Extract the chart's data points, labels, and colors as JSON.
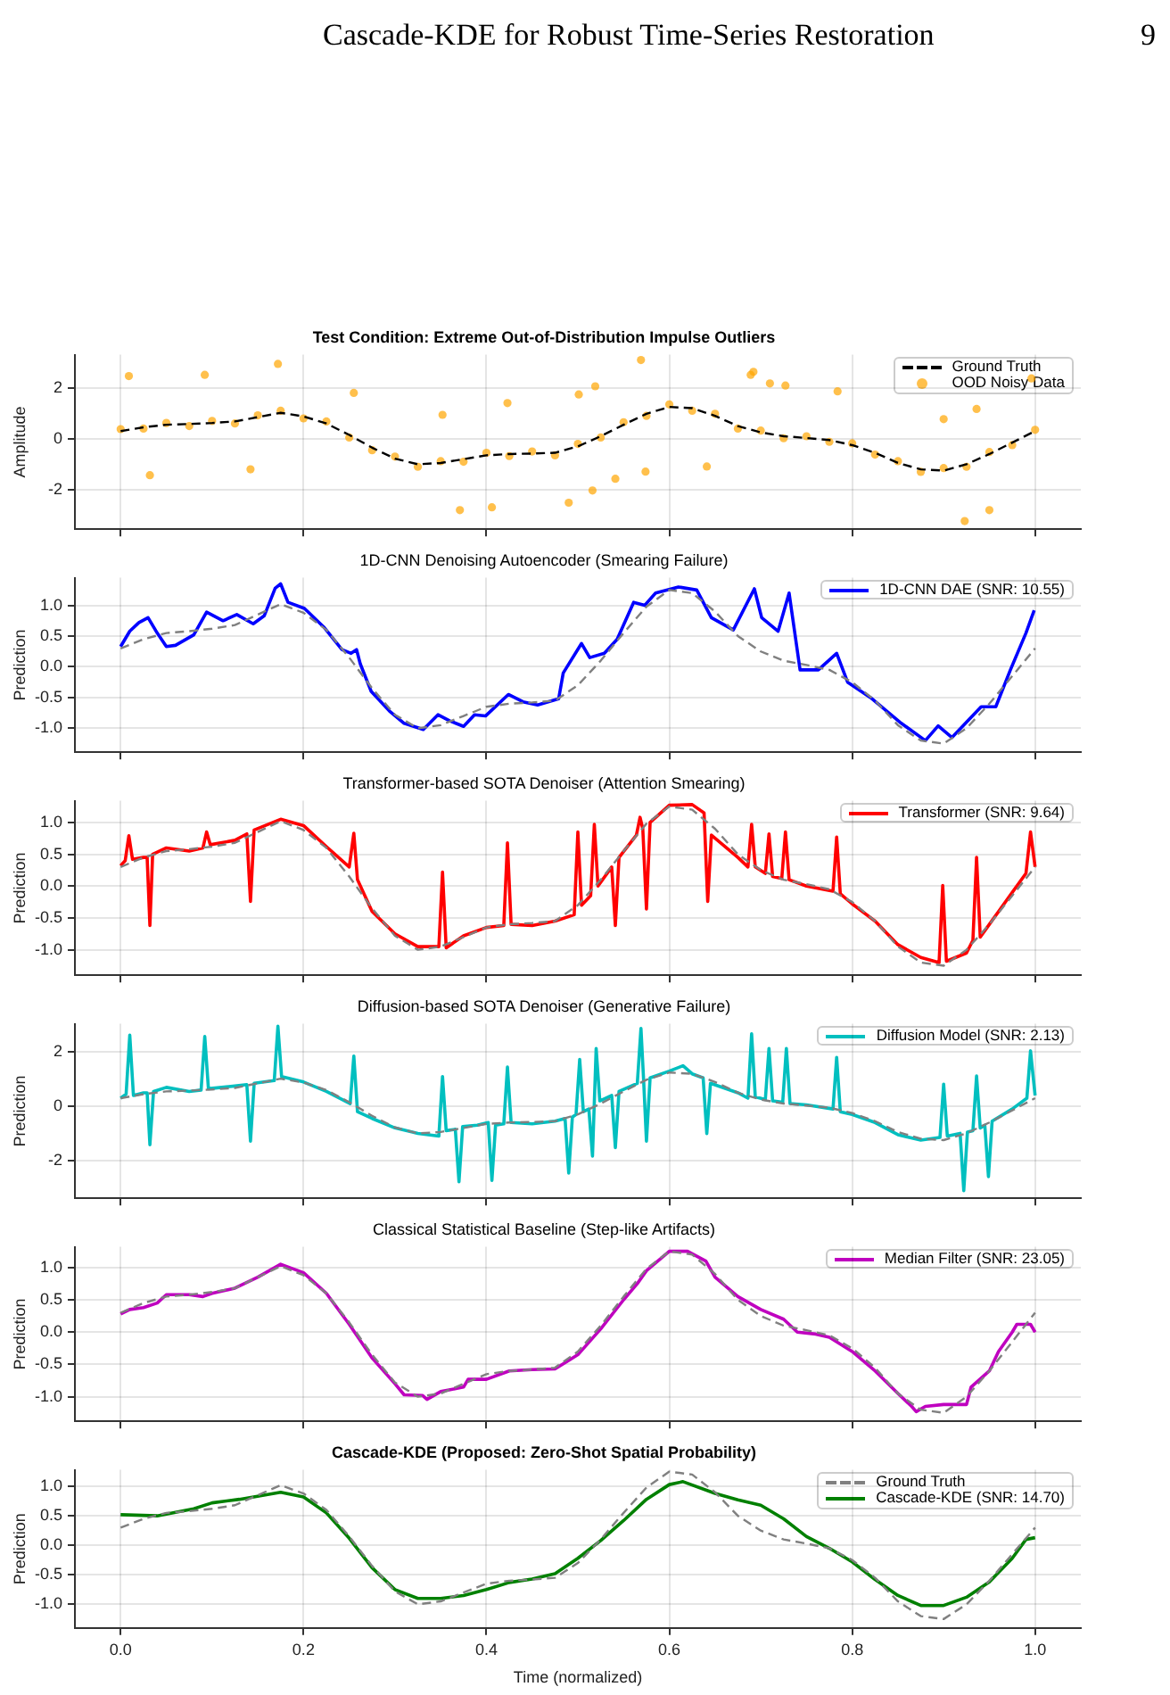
{
  "chart_data": [
    {
      "type": "line",
      "title": "Test Condition: Extreme Out-of-Distribution Impulse Outliers",
      "ylabel": "Amplitude",
      "annotations": [
        "Cascade-KDE for Robust Time-Series Restoration",
        "9"
      ],
      "x": [
        0,
        0.025,
        0.05,
        0.075,
        0.1,
        0.125,
        0.15,
        0.175,
        0.2,
        0.225,
        0.25,
        0.275,
        0.3,
        0.325,
        0.35,
        0.375,
        0.4,
        0.425,
        0.45,
        0.475,
        0.5,
        0.525,
        0.55,
        0.575,
        0.6,
        0.625,
        0.65,
        0.675,
        0.7,
        0.725,
        0.75,
        0.775,
        0.8,
        0.825,
        0.85,
        0.875,
        0.9,
        0.925,
        0.95,
        0.975,
        1
      ],
      "xlim": [
        -0.05,
        1.05
      ],
      "xticks": [
        0,
        0.2,
        0.4,
        0.6,
        0.8,
        1
      ],
      "ylim": [
        -3.55,
        3.3
      ],
      "yticks": [
        -2,
        0,
        2
      ],
      "tick_labels": "y",
      "grid": true,
      "legend": "top right",
      "series": [
        {
          "name": "Ground Truth",
          "color": "#000000",
          "line_style": "dashed",
          "values": [
            0.3,
            0.45,
            0.55,
            0.58,
            0.62,
            0.68,
            0.85,
            1.02,
            0.88,
            0.6,
            0.15,
            -0.35,
            -0.78,
            -1.0,
            -0.95,
            -0.8,
            -0.65,
            -0.6,
            -0.58,
            -0.55,
            -0.3,
            0.1,
            0.55,
            0.98,
            1.25,
            1.2,
            0.9,
            0.5,
            0.25,
            0.1,
            0.03,
            -0.05,
            -0.25,
            -0.55,
            -0.95,
            -1.2,
            -1.25,
            -1.0,
            -0.6,
            -0.15,
            0.3
          ]
        },
        {
          "name": "OOD Noisy Data",
          "type": "scatter",
          "marker": "circle",
          "color": "#ffa500",
          "x": [
            0,
            0.025,
            0.05,
            0.075,
            0.1,
            0.125,
            0.15,
            0.175,
            0.2,
            0.225,
            0.25,
            0.275,
            0.3,
            0.325,
            0.35,
            0.375,
            0.4,
            0.425,
            0.45,
            0.475,
            0.5,
            0.525,
            0.55,
            0.575,
            0.6,
            0.625,
            0.65,
            0.675,
            0.7,
            0.725,
            0.75,
            0.775,
            0.8,
            0.825,
            0.85,
            0.875,
            0.9,
            0.925,
            0.95,
            0.975,
            1,
            0.009,
            0.092,
            0.032,
            0.142,
            0.172,
            0.255,
            0.352,
            0.371,
            0.406,
            0.423,
            0.49,
            0.501,
            0.516,
            0.519,
            0.541,
            0.569,
            0.574,
            0.641,
            0.689,
            0.692,
            0.71,
            0.727,
            0.784,
            0.9,
            0.923,
            0.936,
            0.95,
            0.996
          ],
          "values": [
            0.38,
            0.4,
            0.62,
            0.5,
            0.7,
            0.6,
            0.92,
            1.1,
            0.8,
            0.68,
            0.05,
            -0.45,
            -0.7,
            -1.1,
            -0.88,
            -0.9,
            -0.55,
            -0.68,
            -0.5,
            -0.65,
            -0.2,
            0.05,
            0.65,
            0.9,
            1.35,
            1.1,
            0.98,
            0.4,
            0.32,
            0.02,
            0.1,
            -0.12,
            -0.18,
            -0.62,
            -0.88,
            -1.3,
            -1.15,
            -1.1,
            -0.52,
            -0.25,
            0.35,
            2.46,
            2.51,
            -1.43,
            -1.2,
            2.94,
            1.8,
            0.94,
            -2.8,
            -2.69,
            1.4,
            -2.51,
            1.74,
            -2.03,
            2.06,
            -1.57,
            3.09,
            -1.29,
            -1.09,
            2.51,
            2.63,
            2.17,
            2.09,
            1.86,
            0.77,
            -3.23,
            1.17,
            -2.8,
            2.37
          ]
        }
      ]
    },
    {
      "type": "line",
      "title": "1D-CNN Denoising Autoencoder (Smearing Failure)",
      "ylabel": "Prediction",
      "x": [
        0,
        0.025,
        0.05,
        0.075,
        0.1,
        0.125,
        0.15,
        0.175,
        0.2,
        0.225,
        0.25,
        0.275,
        0.3,
        0.325,
        0.35,
        0.375,
        0.4,
        0.425,
        0.45,
        0.475,
        0.5,
        0.525,
        0.55,
        0.575,
        0.6,
        0.625,
        0.65,
        0.675,
        0.7,
        0.725,
        0.75,
        0.775,
        0.8,
        0.825,
        0.85,
        0.875,
        0.9,
        0.925,
        0.95,
        0.975,
        1
      ],
      "xlim": [
        -0.05,
        1.05
      ],
      "xticks": [
        0,
        0.2,
        0.4,
        0.6,
        0.8,
        1
      ],
      "ylim": [
        -1.39,
        1.45
      ],
      "yticks": [
        {
          "value": -1,
          "label": "-1.0"
        },
        -0.5,
        {
          "value": 0,
          "label": "0.0"
        },
        0.5,
        {
          "value": 1,
          "label": "1.0"
        }
      ],
      "tick_labels": "y",
      "grid": true,
      "legend": "top right",
      "series": [
        {
          "color": "#808080",
          "line_style": "dashed",
          "values": [
            0.3,
            0.45,
            0.55,
            0.58,
            0.62,
            0.68,
            0.85,
            1.02,
            0.88,
            0.6,
            0.15,
            -0.35,
            -0.78,
            -1.0,
            -0.95,
            -0.8,
            -0.65,
            -0.6,
            -0.58,
            -0.55,
            -0.3,
            0.1,
            0.55,
            0.98,
            1.25,
            1.2,
            0.9,
            0.5,
            0.25,
            0.1,
            0.03,
            -0.05,
            -0.25,
            -0.55,
            -0.95,
            -1.2,
            -1.25,
            -1.0,
            -0.6,
            -0.15,
            0.3
          ]
        },
        {
          "name": "1D-CNN DAE (SNR: 10.55)",
          "color": "#0000ff",
          "x": [
            0,
            0.01,
            0.02,
            0.03,
            0.04,
            0.05,
            0.06,
            0.08,
            0.094,
            0.112,
            0.127,
            0.145,
            0.157,
            0.169,
            0.175,
            0.183,
            0.201,
            0.222,
            0.242,
            0.252,
            0.258,
            0.262,
            0.274,
            0.294,
            0.31,
            0.331,
            0.347,
            0.36,
            0.375,
            0.387,
            0.399,
            0.424,
            0.44,
            0.456,
            0.479,
            0.484,
            0.504,
            0.513,
            0.529,
            0.543,
            0.561,
            0.573,
            0.585,
            0.61,
            0.63,
            0.646,
            0.67,
            0.693,
            0.701,
            0.719,
            0.731,
            0.743,
            0.763,
            0.783,
            0.795,
            0.82,
            0.852,
            0.88,
            0.894,
            0.909,
            0.941,
            0.957,
            0.973,
            0.99,
            0.999
          ],
          "values": [
            0.33,
            0.58,
            0.72,
            0.8,
            0.55,
            0.33,
            0.35,
            0.52,
            0.89,
            0.75,
            0.85,
            0.7,
            0.83,
            1.28,
            1.35,
            1.05,
            0.95,
            0.65,
            0.28,
            0.22,
            0.28,
            0.05,
            -0.4,
            -0.72,
            -0.92,
            -1.02,
            -0.78,
            -0.88,
            -0.97,
            -0.78,
            -0.8,
            -0.45,
            -0.57,
            -0.62,
            -0.52,
            -0.1,
            0.38,
            0.15,
            0.22,
            0.45,
            1.05,
            1.0,
            1.2,
            1.3,
            1.25,
            0.8,
            0.6,
            1.27,
            0.8,
            0.58,
            1.2,
            -0.05,
            -0.05,
            0.22,
            -0.25,
            -0.5,
            -0.9,
            -1.2,
            -0.96,
            -1.15,
            -0.65,
            -0.65,
            -0.05,
            0.55,
            0.92
          ]
        }
      ]
    },
    {
      "type": "line",
      "title": "Transformer-based SOTA Denoiser (Attention Smearing)",
      "ylabel": "Prediction",
      "x": [
        0,
        0.025,
        0.05,
        0.075,
        0.1,
        0.125,
        0.15,
        0.175,
        0.2,
        0.225,
        0.25,
        0.275,
        0.3,
        0.325,
        0.35,
        0.375,
        0.4,
        0.425,
        0.45,
        0.475,
        0.5,
        0.525,
        0.55,
        0.575,
        0.6,
        0.625,
        0.65,
        0.675,
        0.7,
        0.725,
        0.75,
        0.775,
        0.8,
        0.825,
        0.85,
        0.875,
        0.9,
        0.925,
        0.95,
        0.975,
        1
      ],
      "xlim": [
        -0.05,
        1.05
      ],
      "xticks": [
        0,
        0.2,
        0.4,
        0.6,
        0.8,
        1
      ],
      "ylim": [
        -1.4,
        1.34
      ],
      "yticks": [
        {
          "value": -1,
          "label": "-1.0"
        },
        -0.5,
        {
          "value": 0,
          "label": "0.0"
        },
        0.5,
        {
          "value": 1,
          "label": "1.0"
        }
      ],
      "tick_labels": "y",
      "grid": true,
      "legend": "top right",
      "series": [
        {
          "color": "#808080",
          "line_style": "dashed",
          "values": [
            0.3,
            0.45,
            0.55,
            0.58,
            0.62,
            0.68,
            0.85,
            1.02,
            0.88,
            0.6,
            0.15,
            -0.35,
            -0.78,
            -1.0,
            -0.95,
            -0.8,
            -0.65,
            -0.6,
            -0.58,
            -0.55,
            -0.3,
            0.1,
            0.55,
            0.98,
            1.25,
            1.2,
            0.9,
            0.5,
            0.25,
            0.1,
            0.03,
            -0.05,
            -0.25,
            -0.55,
            -0.95,
            -1.2,
            -1.25,
            -1.0,
            -0.6,
            -0.15,
            0.3
          ]
        },
        {
          "name": "Transformer (SNR: 9.64)",
          "color": "#ff0000",
          "x": [
            0,
            0.005,
            0.009,
            0.013,
            0.025,
            0.029,
            0.032,
            0.035,
            0.05,
            0.075,
            0.09,
            0.094,
            0.098,
            0.125,
            0.138,
            0.142,
            0.146,
            0.175,
            0.2,
            0.225,
            0.25,
            0.255,
            0.259,
            0.275,
            0.3,
            0.325,
            0.348,
            0.352,
            0.356,
            0.375,
            0.4,
            0.419,
            0.423,
            0.427,
            0.45,
            0.475,
            0.496,
            0.5,
            0.504,
            0.514,
            0.518,
            0.522,
            0.537,
            0.541,
            0.545,
            0.564,
            0.568,
            0.571,
            0.575,
            0.579,
            0.6,
            0.625,
            0.638,
            0.642,
            0.646,
            0.675,
            0.686,
            0.69,
            0.694,
            0.705,
            0.709,
            0.713,
            0.723,
            0.727,
            0.731,
            0.75,
            0.779,
            0.783,
            0.787,
            0.8,
            0.825,
            0.85,
            0.875,
            0.895,
            0.899,
            0.903,
            0.925,
            0.932,
            0.936,
            0.94,
            0.95,
            0.975,
            0.99,
            0.995,
            1
          ],
          "values": [
            0.32,
            0.4,
            0.79,
            0.42,
            0.45,
            0.45,
            -0.62,
            0.5,
            0.6,
            0.55,
            0.6,
            0.85,
            0.65,
            0.72,
            0.82,
            -0.24,
            0.88,
            1.05,
            0.95,
            0.62,
            0.3,
            0.83,
            0.1,
            -0.4,
            -0.75,
            -0.95,
            -0.95,
            0.22,
            -0.97,
            -0.78,
            -0.65,
            -0.62,
            0.68,
            -0.6,
            -0.62,
            -0.55,
            -0.45,
            0.85,
            -0.3,
            -0.15,
            0.97,
            0.0,
            0.3,
            -0.62,
            0.45,
            0.8,
            1.08,
            0.9,
            -0.36,
            1.0,
            1.27,
            1.28,
            1.15,
            -0.24,
            0.8,
            0.45,
            0.3,
            0.97,
            0.3,
            0.2,
            0.82,
            0.15,
            0.12,
            0.85,
            0.1,
            0.0,
            -0.08,
            0.77,
            -0.12,
            -0.28,
            -0.55,
            -0.92,
            -1.12,
            -1.2,
            0.01,
            -1.18,
            -1.05,
            -0.85,
            0.45,
            -0.8,
            -0.6,
            -0.1,
            0.2,
            0.85,
            0.3
          ]
        }
      ]
    },
    {
      "type": "line",
      "title": "Diffusion-based SOTA Denoiser (Generative Failure)",
      "ylabel": "Prediction",
      "x": [
        0,
        0.025,
        0.05,
        0.075,
        0.1,
        0.125,
        0.15,
        0.175,
        0.2,
        0.225,
        0.25,
        0.275,
        0.3,
        0.325,
        0.35,
        0.375,
        0.4,
        0.425,
        0.45,
        0.475,
        0.5,
        0.525,
        0.55,
        0.575,
        0.6,
        0.625,
        0.65,
        0.675,
        0.7,
        0.725,
        0.75,
        0.775,
        0.8,
        0.825,
        0.85,
        0.875,
        0.9,
        0.925,
        0.95,
        0.975,
        1
      ],
      "xlim": [
        -0.05,
        1.05
      ],
      "xticks": [
        0,
        0.2,
        0.4,
        0.6,
        0.8,
        1
      ],
      "ylim": [
        -3.4,
        3.05
      ],
      "yticks": [
        -2,
        0,
        2
      ],
      "tick_labels": "y",
      "grid": true,
      "legend": "top right",
      "series": [
        {
          "color": "#808080",
          "line_style": "dashed",
          "values": [
            0.3,
            0.45,
            0.55,
            0.58,
            0.62,
            0.68,
            0.85,
            1.02,
            0.88,
            0.6,
            0.15,
            -0.35,
            -0.78,
            -1.0,
            -0.95,
            -0.8,
            -0.65,
            -0.6,
            -0.58,
            -0.55,
            -0.3,
            0.1,
            0.55,
            0.98,
            1.25,
            1.2,
            0.9,
            0.5,
            0.25,
            0.1,
            0.03,
            -0.05,
            -0.25,
            -0.55,
            -0.95,
            -1.2,
            -1.25,
            -1.0,
            -0.6,
            -0.15,
            0.3
          ]
        },
        {
          "name": "Diffusion Model (SNR: 2.13)",
          "color": "#00bfbf",
          "x": [
            0,
            0.006,
            0.01,
            0.014,
            0.025,
            0.029,
            0.032,
            0.036,
            0.05,
            0.075,
            0.088,
            0.092,
            0.096,
            0.125,
            0.138,
            0.142,
            0.146,
            0.168,
            0.172,
            0.176,
            0.2,
            0.225,
            0.251,
            0.255,
            0.259,
            0.275,
            0.3,
            0.325,
            0.348,
            0.352,
            0.356,
            0.366,
            0.37,
            0.374,
            0.39,
            0.402,
            0.406,
            0.41,
            0.419,
            0.423,
            0.427,
            0.45,
            0.475,
            0.486,
            0.49,
            0.494,
            0.498,
            0.502,
            0.506,
            0.512,
            0.516,
            0.52,
            0.524,
            0.537,
            0.541,
            0.545,
            0.565,
            0.569,
            0.572,
            0.575,
            0.579,
            0.6,
            0.615,
            0.625,
            0.637,
            0.641,
            0.645,
            0.675,
            0.686,
            0.69,
            0.694,
            0.705,
            0.709,
            0.713,
            0.724,
            0.728,
            0.732,
            0.75,
            0.779,
            0.783,
            0.787,
            0.8,
            0.825,
            0.85,
            0.875,
            0.896,
            0.9,
            0.904,
            0.918,
            0.922,
            0.926,
            0.932,
            0.936,
            0.94,
            0.945,
            0.949,
            0.953,
            0.975,
            0.991,
            0.995,
            1
          ],
          "values": [
            0.3,
            0.45,
            2.63,
            0.4,
            0.5,
            0.5,
            -1.42,
            0.55,
            0.7,
            0.55,
            0.6,
            2.58,
            0.65,
            0.75,
            0.8,
            -1.29,
            0.85,
            0.95,
            2.96,
            1.1,
            0.9,
            0.55,
            0.1,
            1.86,
            -0.2,
            -0.45,
            -0.8,
            -1.0,
            -1.1,
            1.1,
            -0.9,
            -0.85,
            -2.79,
            -0.75,
            -0.7,
            -0.6,
            -2.74,
            -0.7,
            -0.65,
            1.45,
            -0.6,
            -0.65,
            -0.55,
            -0.45,
            -2.47,
            -0.4,
            -0.3,
            1.73,
            -0.2,
            -0.1,
            -1.84,
            2.14,
            0.2,
            0.4,
            -1.53,
            0.55,
            0.85,
            2.88,
            0.9,
            -1.29,
            1.05,
            1.3,
            1.5,
            1.2,
            1.05,
            -1.01,
            0.85,
            0.5,
            0.3,
            2.68,
            0.35,
            0.25,
            2.14,
            0.2,
            0.15,
            2.14,
            0.1,
            0.05,
            -0.1,
            1.81,
            -0.2,
            -0.3,
            -0.6,
            -1.05,
            -1.25,
            -1.15,
            0.82,
            -1.1,
            -1.0,
            -3.12,
            -0.95,
            -0.9,
            1.12,
            -0.8,
            -0.7,
            -2.6,
            -0.55,
            -0.1,
            0.3,
            2.05,
            0.4
          ]
        }
      ]
    },
    {
      "type": "line",
      "title": "Classical Statistical Baseline (Step-like Artifacts)",
      "ylabel": "Prediction",
      "x": [
        0,
        0.025,
        0.05,
        0.075,
        0.1,
        0.125,
        0.15,
        0.175,
        0.2,
        0.225,
        0.25,
        0.275,
        0.3,
        0.325,
        0.35,
        0.375,
        0.4,
        0.425,
        0.45,
        0.475,
        0.5,
        0.525,
        0.55,
        0.575,
        0.6,
        0.625,
        0.65,
        0.675,
        0.7,
        0.725,
        0.75,
        0.775,
        0.8,
        0.825,
        0.85,
        0.875,
        0.9,
        0.925,
        0.95,
        0.975,
        1
      ],
      "xlim": [
        -0.05,
        1.05
      ],
      "xticks": [
        0,
        0.2,
        0.4,
        0.6,
        0.8,
        1
      ],
      "ylim": [
        -1.38,
        1.32
      ],
      "yticks": [
        {
          "value": -1,
          "label": "-1.0"
        },
        -0.5,
        {
          "value": 0,
          "label": "0.0"
        },
        0.5,
        {
          "value": 1,
          "label": "1.0"
        }
      ],
      "tick_labels": "y",
      "grid": true,
      "legend": "top right",
      "series": [
        {
          "color": "#808080",
          "line_style": "dashed",
          "values": [
            0.3,
            0.45,
            0.55,
            0.58,
            0.62,
            0.68,
            0.85,
            1.02,
            0.88,
            0.6,
            0.15,
            -0.35,
            -0.78,
            -1.0,
            -0.95,
            -0.8,
            -0.65,
            -0.6,
            -0.58,
            -0.55,
            -0.3,
            0.1,
            0.55,
            0.98,
            1.25,
            1.2,
            0.9,
            0.5,
            0.25,
            0.1,
            0.03,
            -0.05,
            -0.25,
            -0.55,
            -0.95,
            -1.2,
            -1.25,
            -1.0,
            -0.6,
            -0.15,
            0.3
          ]
        },
        {
          "name": "Median Filter (SNR: 23.05)",
          "color": "#bf00bf",
          "x": [
            0,
            0.01,
            0.025,
            0.04,
            0.05,
            0.075,
            0.09,
            0.1,
            0.125,
            0.15,
            0.175,
            0.2,
            0.225,
            0.25,
            0.275,
            0.3,
            0.31,
            0.33,
            0.335,
            0.35,
            0.375,
            0.38,
            0.4,
            0.425,
            0.45,
            0.475,
            0.5,
            0.525,
            0.55,
            0.565,
            0.575,
            0.6,
            0.62,
            0.64,
            0.65,
            0.675,
            0.7,
            0.725,
            0.74,
            0.76,
            0.775,
            0.8,
            0.825,
            0.85,
            0.865,
            0.87,
            0.88,
            0.9,
            0.925,
            0.93,
            0.95,
            0.96,
            0.975,
            0.98,
            0.995,
            1
          ],
          "values": [
            0.28,
            0.35,
            0.38,
            0.45,
            0.58,
            0.58,
            0.55,
            0.6,
            0.68,
            0.85,
            1.05,
            0.92,
            0.6,
            0.12,
            -0.4,
            -0.8,
            -0.97,
            -0.98,
            -1.04,
            -0.92,
            -0.85,
            -0.73,
            -0.73,
            -0.6,
            -0.58,
            -0.57,
            -0.35,
            0.05,
            0.5,
            0.75,
            0.95,
            1.25,
            1.25,
            1.1,
            0.85,
            0.55,
            0.35,
            0.2,
            0.0,
            -0.03,
            -0.08,
            -0.3,
            -0.6,
            -0.95,
            -1.15,
            -1.23,
            -1.15,
            -1.12,
            -1.12,
            -0.85,
            -0.6,
            -0.3,
            0.0,
            0.12,
            0.12,
            0.0
          ]
        }
      ]
    },
    {
      "type": "line",
      "title": "Cascade-KDE (Proposed: Zero-Shot Spatial Probability)",
      "xlabel": "Time (normalized)",
      "ylabel": "Prediction",
      "x": [
        0,
        0.025,
        0.05,
        0.075,
        0.1,
        0.125,
        0.15,
        0.175,
        0.2,
        0.225,
        0.25,
        0.275,
        0.3,
        0.325,
        0.35,
        0.375,
        0.4,
        0.425,
        0.45,
        0.475,
        0.5,
        0.525,
        0.55,
        0.575,
        0.6,
        0.625,
        0.65,
        0.675,
        0.7,
        0.725,
        0.75,
        0.775,
        0.8,
        0.825,
        0.85,
        0.875,
        0.9,
        0.925,
        0.95,
        0.975,
        1
      ],
      "xlim": [
        -0.05,
        1.05
      ],
      "xticks": [
        {
          "value": 0,
          "label": "0.0"
        },
        0.2,
        0.4,
        0.6,
        0.8,
        {
          "value": 1,
          "label": "1.0"
        }
      ],
      "ylim": [
        -1.4,
        1.28
      ],
      "yticks": [
        {
          "value": -1,
          "label": "-1.0"
        },
        -0.5,
        {
          "value": 0,
          "label": "0.0"
        },
        0.5,
        {
          "value": 1,
          "label": "1.0"
        }
      ],
      "grid": true,
      "legend": "top right",
      "series": [
        {
          "name": "Ground Truth",
          "color": "#808080",
          "line_style": "dashed",
          "values": [
            0.3,
            0.45,
            0.55,
            0.58,
            0.62,
            0.68,
            0.85,
            1.02,
            0.88,
            0.6,
            0.15,
            -0.35,
            -0.78,
            -1.0,
            -0.95,
            -0.8,
            -0.65,
            -0.6,
            -0.58,
            -0.55,
            -0.3,
            0.1,
            0.55,
            0.98,
            1.25,
            1.2,
            0.9,
            0.5,
            0.25,
            0.1,
            0.03,
            -0.05,
            -0.25,
            -0.55,
            -0.95,
            -1.2,
            -1.25,
            -1.0,
            -0.6,
            -0.15,
            0.3
          ]
        },
        {
          "name": "Cascade-KDE (SNR: 14.70)",
          "color": "#008000",
          "x": [
            0,
            0.04,
            0.08,
            0.1,
            0.13,
            0.175,
            0.2,
            0.225,
            0.25,
            0.275,
            0.3,
            0.325,
            0.35,
            0.375,
            0.4,
            0.425,
            0.45,
            0.475,
            0.5,
            0.525,
            0.55,
            0.575,
            0.6,
            0.615,
            0.65,
            0.675,
            0.7,
            0.725,
            0.75,
            0.775,
            0.8,
            0.825,
            0.85,
            0.875,
            0.9,
            0.925,
            0.95,
            0.975,
            0.99,
            1
          ],
          "values": [
            0.52,
            0.5,
            0.62,
            0.72,
            0.78,
            0.9,
            0.82,
            0.55,
            0.12,
            -0.38,
            -0.75,
            -0.9,
            -0.9,
            -0.85,
            -0.75,
            -0.63,
            -0.57,
            -0.48,
            -0.22,
            0.08,
            0.42,
            0.78,
            1.03,
            1.08,
            0.88,
            0.77,
            0.68,
            0.45,
            0.15,
            -0.05,
            -0.28,
            -0.58,
            -0.85,
            -1.02,
            -1.02,
            -0.88,
            -0.62,
            -0.22,
            0.1,
            0.13
          ]
        }
      ]
    }
  ]
}
